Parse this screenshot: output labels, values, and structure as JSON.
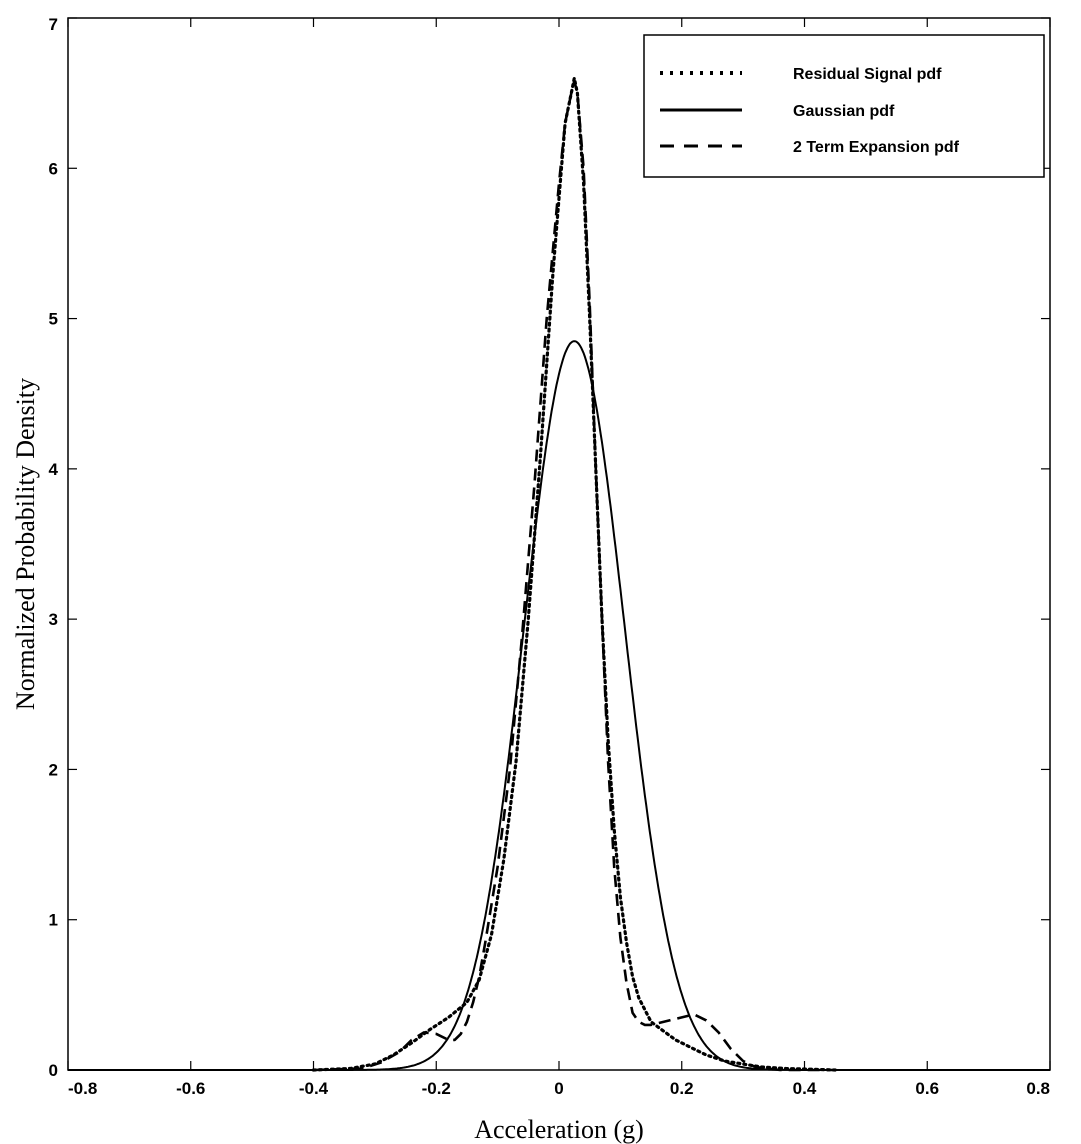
{
  "chart_data": {
    "type": "line",
    "title": "",
    "xlabel": "Acceleration  (g)",
    "ylabel": "Normalized Probability Density",
    "xlim": [
      -0.8,
      0.8
    ],
    "ylim": [
      0,
      7
    ],
    "xticks": [
      -0.8,
      -0.6,
      -0.4,
      -0.2,
      0,
      0.2,
      0.4,
      0.6,
      0.8
    ],
    "xtick_labels": [
      "-0.8",
      "-0.6",
      "-0.4",
      "-0.2",
      "0",
      "0.2",
      "0.4",
      "0.6",
      "0.8"
    ],
    "yticks": [
      0,
      1,
      2,
      3,
      4,
      5,
      6,
      7
    ],
    "ytick_labels": [
      "0",
      "1",
      "2",
      "3",
      "4",
      "5",
      "6",
      "7"
    ],
    "grid": false,
    "legend_position": "top-right",
    "series": [
      {
        "name": "Residual Signal pdf",
        "style": "dotted",
        "x": [
          -0.4,
          -0.34,
          -0.3,
          -0.27,
          -0.24,
          -0.21,
          -0.18,
          -0.15,
          -0.13,
          -0.11,
          -0.09,
          -0.07,
          -0.05,
          -0.03,
          -0.01,
          0.0,
          0.01,
          0.02,
          0.025,
          0.03,
          0.04,
          0.05,
          0.06,
          0.07,
          0.08,
          0.09,
          0.1,
          0.11,
          0.12,
          0.13,
          0.15,
          0.17,
          0.19,
          0.21,
          0.24,
          0.27,
          0.3,
          0.33,
          0.37,
          0.45
        ],
        "y": [
          0.0,
          0.01,
          0.04,
          0.1,
          0.18,
          0.27,
          0.35,
          0.45,
          0.6,
          0.9,
          1.4,
          2.05,
          3.0,
          4.1,
          5.3,
          5.8,
          6.3,
          6.5,
          6.6,
          6.5,
          5.9,
          5.0,
          4.0,
          3.0,
          2.2,
          1.6,
          1.15,
          0.85,
          0.62,
          0.48,
          0.32,
          0.26,
          0.2,
          0.16,
          0.1,
          0.06,
          0.04,
          0.02,
          0.01,
          0.0
        ]
      },
      {
        "name": "Gaussian pdf",
        "style": "solid",
        "mean": 0.025,
        "peak": 4.85,
        "x_range": [
          -0.8,
          0.8
        ]
      },
      {
        "name": "2 Term Expansion pdf",
        "style": "dashed",
        "x": [
          -0.4,
          -0.32,
          -0.29,
          -0.26,
          -0.24,
          -0.22,
          -0.2,
          -0.18,
          -0.17,
          -0.16,
          -0.15,
          -0.14,
          -0.13,
          -0.12,
          -0.1,
          -0.08,
          -0.06,
          -0.04,
          -0.02,
          0.0,
          0.01,
          0.02,
          0.025,
          0.03,
          0.04,
          0.05,
          0.06,
          0.07,
          0.08,
          0.09,
          0.1,
          0.11,
          0.12,
          0.13,
          0.14,
          0.15,
          0.16,
          0.18,
          0.2,
          0.22,
          0.24,
          0.26,
          0.28,
          0.3,
          0.32,
          0.36,
          0.45
        ],
        "y": [
          0.0,
          0.01,
          0.05,
          0.12,
          0.2,
          0.25,
          0.24,
          0.2,
          0.2,
          0.24,
          0.32,
          0.45,
          0.62,
          0.85,
          1.35,
          2.0,
          2.9,
          3.9,
          5.0,
          5.9,
          6.3,
          6.5,
          6.58,
          6.5,
          6.0,
          5.1,
          4.0,
          3.0,
          2.05,
          1.35,
          0.88,
          0.58,
          0.38,
          0.32,
          0.3,
          0.3,
          0.31,
          0.33,
          0.35,
          0.37,
          0.33,
          0.25,
          0.14,
          0.06,
          0.02,
          0.0,
          0.0
        ]
      }
    ]
  },
  "legend": {
    "items": [
      {
        "label": "Residual Signal pdf"
      },
      {
        "label": "Gaussian pdf"
      },
      {
        "label": "2 Term Expansion pdf"
      }
    ]
  }
}
